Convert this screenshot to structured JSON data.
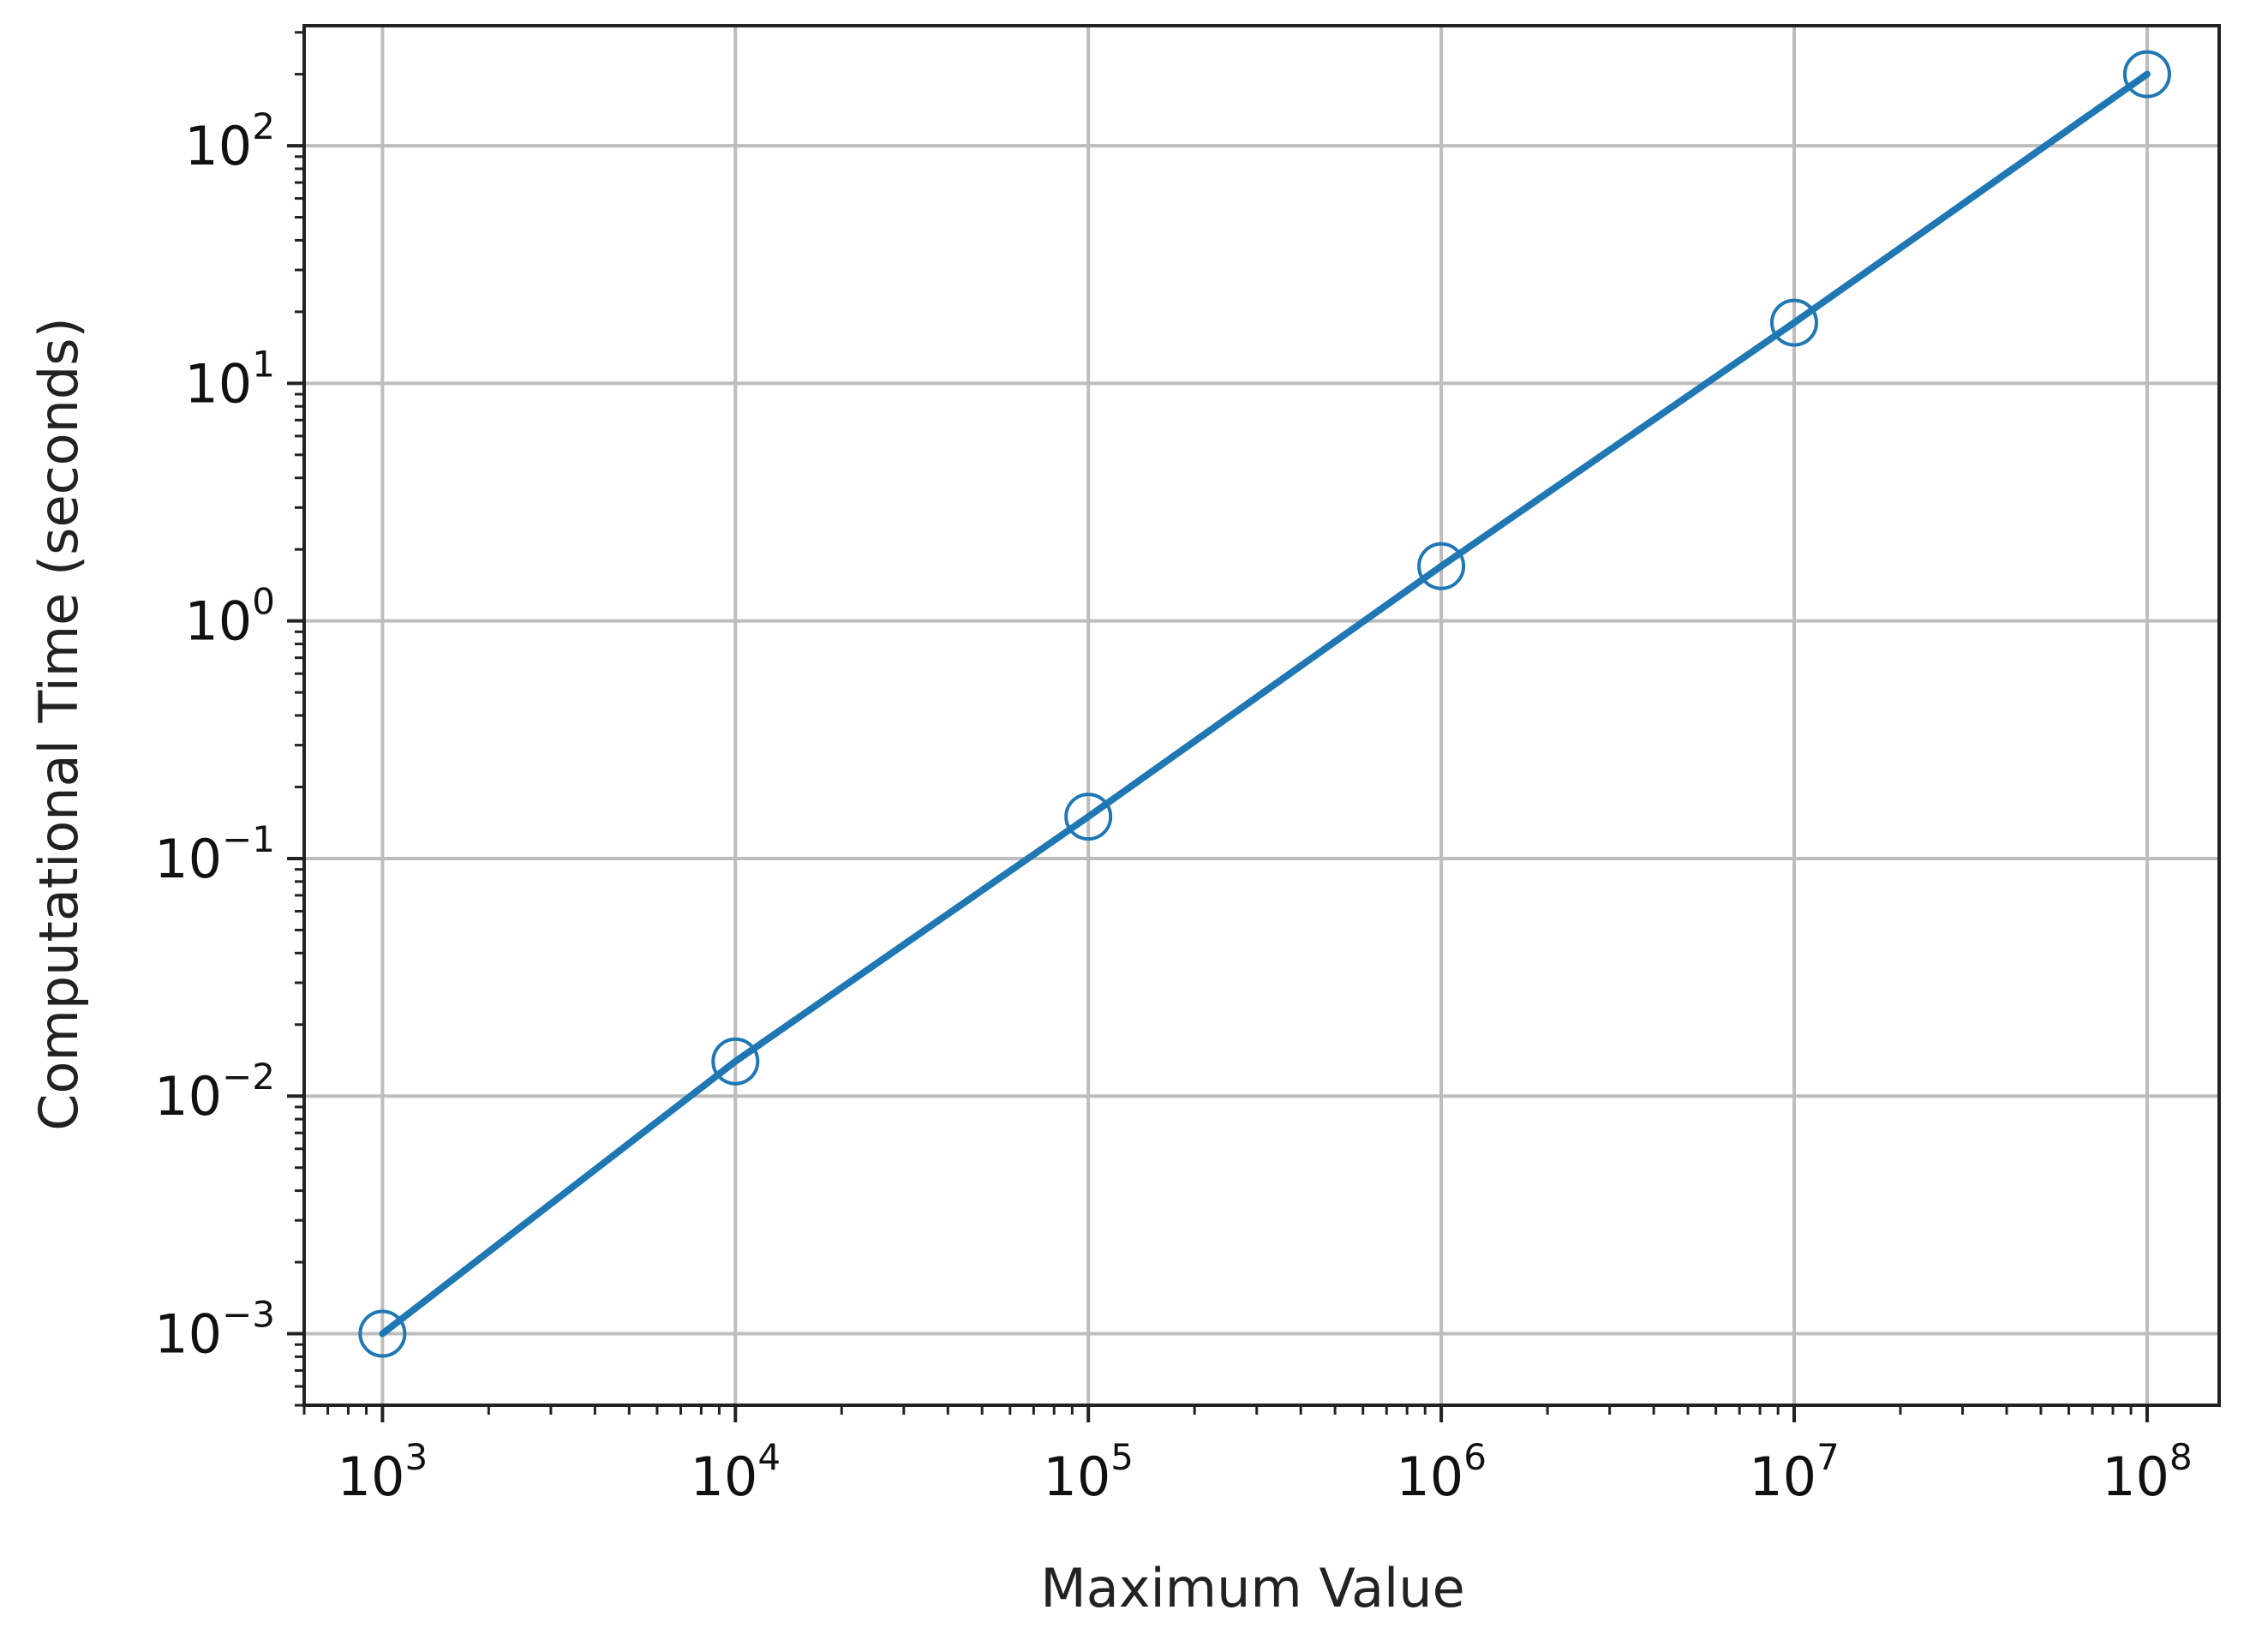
{
  "chart_data": {
    "type": "line",
    "title": "",
    "xlabel": "Maximum Value",
    "ylabel": "Computational Time (seconds)",
    "x_scale": "log",
    "y_scale": "log",
    "xlim": [
      600,
      160000000
    ],
    "ylim": [
      0.0005,
      320
    ],
    "grid": true,
    "legend": "none",
    "x_ticks": [
      {
        "value": 1000,
        "base": "10",
        "exp": "3"
      },
      {
        "value": 10000,
        "base": "10",
        "exp": "4"
      },
      {
        "value": 100000,
        "base": "10",
        "exp": "5"
      },
      {
        "value": 1000000,
        "base": "10",
        "exp": "6"
      },
      {
        "value": 10000000,
        "base": "10",
        "exp": "7"
      },
      {
        "value": 100000000,
        "base": "10",
        "exp": "8"
      }
    ],
    "y_ticks": [
      {
        "value": 0.001,
        "base": "10",
        "exp": "−3"
      },
      {
        "value": 0.01,
        "base": "10",
        "exp": "−2"
      },
      {
        "value": 0.1,
        "base": "10",
        "exp": "−1"
      },
      {
        "value": 1,
        "base": "10",
        "exp": "0"
      },
      {
        "value": 10,
        "base": "10",
        "exp": "1"
      },
      {
        "value": 100,
        "base": "10",
        "exp": "2"
      }
    ],
    "series": [
      {
        "color": "#1f77b4",
        "marker": "open-circle",
        "x": [
          1000,
          10000,
          100000,
          1000000,
          10000000,
          100000000
        ],
        "y": [
          0.001,
          0.014,
          0.15,
          1.7,
          18,
          200
        ]
      }
    ]
  }
}
